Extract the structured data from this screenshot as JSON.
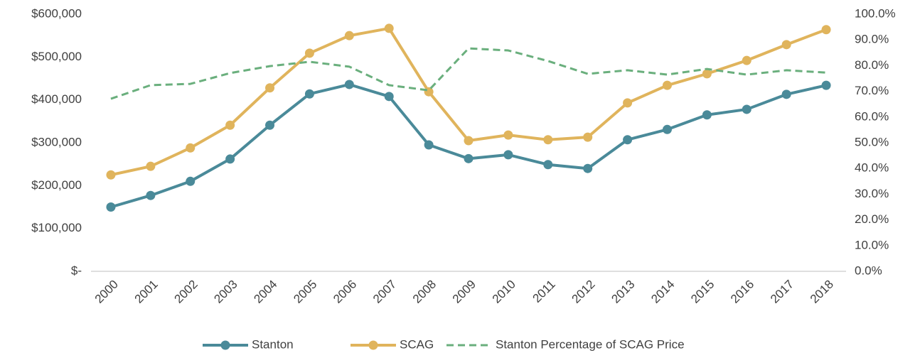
{
  "chart_data": {
    "type": "line",
    "categories": [
      "2000",
      "2001",
      "2002",
      "2003",
      "2004",
      "2005",
      "2006",
      "2007",
      "2008",
      "2009",
      "2010",
      "2011",
      "2012",
      "2013",
      "2014",
      "2015",
      "2016",
      "2017",
      "2018"
    ],
    "series": [
      {
        "name": "Stanton",
        "color": "#4a8a99",
        "markers": true,
        "dashed": false,
        "values": [
          150000,
          177000,
          210000,
          262000,
          341000,
          414000,
          436000,
          408000,
          295000,
          263000,
          272000,
          249000,
          240000,
          307000,
          331000,
          365000,
          378000,
          413000,
          434000
        ]
      },
      {
        "name": "SCAG",
        "color": "#e0b45c",
        "markers": true,
        "dashed": false,
        "values": [
          225000,
          245000,
          288000,
          341000,
          428000,
          509000,
          550000,
          567000,
          419000,
          305000,
          318000,
          307000,
          313000,
          393000,
          434000,
          461000,
          492000,
          529000,
          564000
        ]
      },
      {
        "name": "Stanton Percentage of SCAG Price",
        "color": "#6aaf7d",
        "markers": false,
        "dashed": true,
        "axis": "y2",
        "values": [
          67.1,
          72.4,
          72.9,
          77.1,
          79.8,
          81.5,
          79.6,
          72.4,
          70.4,
          86.7,
          85.9,
          81.8,
          76.8,
          78.2,
          76.5,
          78.7,
          76.5,
          78.2,
          77.3
        ]
      }
    ],
    "ylim": [
      0,
      600000
    ],
    "yticks": [
      {
        "value": 0,
        "label": "$-"
      },
      {
        "value": 100000,
        "label": "$100,000"
      },
      {
        "value": 200000,
        "label": "$200,000"
      },
      {
        "value": 300000,
        "label": "$300,000"
      },
      {
        "value": 400000,
        "label": "$400,000"
      },
      {
        "value": 500000,
        "label": "$500,000"
      },
      {
        "value": 600000,
        "label": "$600,000"
      }
    ],
    "y2lim": [
      0,
      100
    ],
    "y2ticks": [
      {
        "value": 0,
        "label": "0.0%"
      },
      {
        "value": 10,
        "label": "10.0%"
      },
      {
        "value": 20,
        "label": "20.0%"
      },
      {
        "value": 30,
        "label": "30.0%"
      },
      {
        "value": 40,
        "label": "40.0%"
      },
      {
        "value": 50,
        "label": "50.0%"
      },
      {
        "value": 60,
        "label": "60.0%"
      },
      {
        "value": 70,
        "label": "70.0%"
      },
      {
        "value": 80,
        "label": "80.0%"
      },
      {
        "value": 90,
        "label": "90.0%"
      },
      {
        "value": 100,
        "label": "100.0%"
      }
    ],
    "grid": false,
    "legend": "bottom"
  }
}
